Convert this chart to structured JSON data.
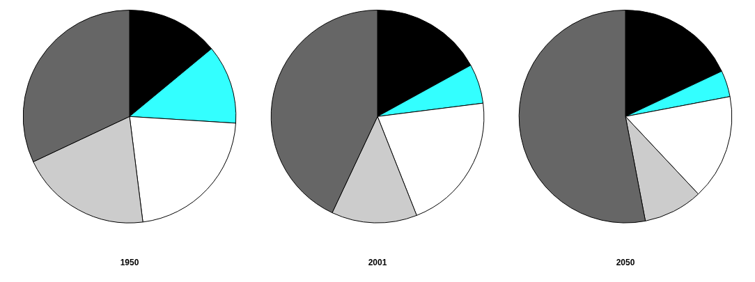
{
  "chart_data": [
    {
      "type": "pie",
      "title": "1950",
      "categories": [
        null,
        null,
        null,
        null,
        null
      ],
      "values": [
        14,
        12,
        22,
        20,
        32
      ],
      "colors": [
        "#000000",
        "#33ffff",
        "#ffffff",
        "#cccccc",
        "#666666"
      ],
      "legend": false
    },
    {
      "type": "pie",
      "title": "2001",
      "categories": [
        null,
        null,
        null,
        null,
        null
      ],
      "values": [
        17,
        6,
        21,
        13,
        43
      ],
      "colors": [
        "#000000",
        "#33ffff",
        "#ffffff",
        "#cccccc",
        "#666666"
      ],
      "legend": false
    },
    {
      "type": "pie",
      "title": "2050",
      "categories": [
        null,
        null,
        null,
        null,
        null
      ],
      "values": [
        18,
        4,
        16,
        9,
        53
      ],
      "colors": [
        "#000000",
        "#33ffff",
        "#ffffff",
        "#cccccc",
        "#666666"
      ],
      "legend": false
    }
  ]
}
